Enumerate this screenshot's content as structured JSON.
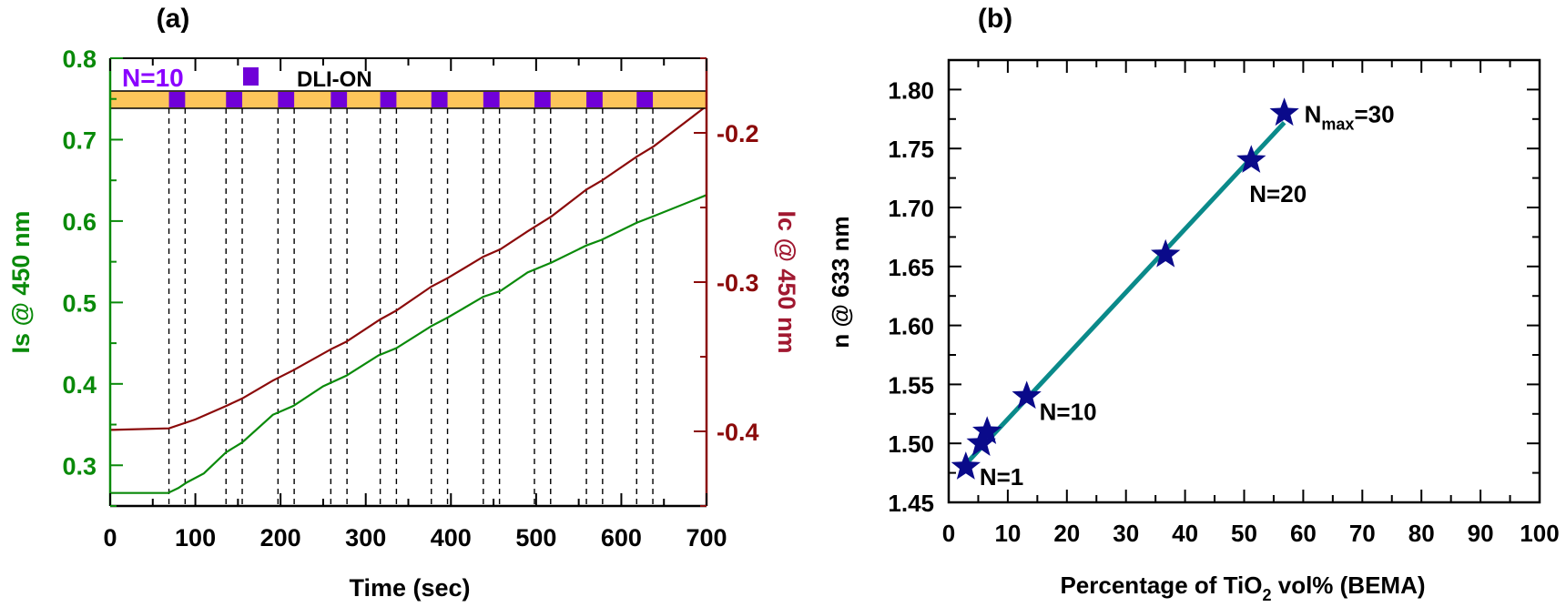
{
  "chart_data": [
    {
      "type": "line",
      "panel_label": "(a)",
      "xlabel": "Time (sec)",
      "ylabel_left": "Is @ 450 nm",
      "ylabel_right": "Ic @ 450 nm",
      "xlim": [
        0,
        700
      ],
      "ylim_left": [
        0.25,
        0.8
      ],
      "ylim_right": [
        -0.45,
        -0.15
      ],
      "x_ticks": [
        0,
        100,
        200,
        300,
        400,
        500,
        600,
        700
      ],
      "x_tick_labels": [
        "0",
        "100",
        "200",
        "300",
        "400",
        "500",
        "600",
        "700"
      ],
      "y_left_ticks": [
        0.3,
        0.4,
        0.5,
        0.6,
        0.7,
        0.8
      ],
      "y_left_tick_labels": [
        "0.3",
        "0.4",
        "0.5",
        "0.6",
        "0.7",
        "0.8"
      ],
      "y_right_ticks": [
        -0.4,
        -0.3,
        -0.2
      ],
      "y_right_tick_labels": [
        "-0.4",
        "-0.3",
        "-0.2"
      ],
      "legend": {
        "cycle_label": "N=10",
        "pulse_label": "DLI-ON",
        "placement": "top-left"
      },
      "dli_pulses": {
        "starts": [
          69,
          136,
          197,
          259,
          317,
          377,
          438,
          498,
          559,
          618
        ],
        "duration": 19
      },
      "series": [
        {
          "name": "Is @ 450 nm",
          "axis": "left",
          "color": "#0a8a0a",
          "points": [
            [
              0,
              0.266
            ],
            [
              68,
              0.266
            ],
            [
              80,
              0.272
            ],
            [
              90,
              0.279
            ],
            [
              110,
              0.29
            ],
            [
              136,
              0.316
            ],
            [
              155,
              0.328
            ],
            [
              191,
              0.362
            ],
            [
              215,
              0.373
            ],
            [
              250,
              0.397
            ],
            [
              277,
              0.41
            ],
            [
              315,
              0.435
            ],
            [
              336,
              0.444
            ],
            [
              377,
              0.471
            ],
            [
              397,
              0.482
            ],
            [
              438,
              0.507
            ],
            [
              458,
              0.514
            ],
            [
              490,
              0.537
            ],
            [
              518,
              0.549
            ],
            [
              559,
              0.57
            ],
            [
              577,
              0.577
            ],
            [
              618,
              0.598
            ],
            [
              638,
              0.606
            ],
            [
              700,
              0.632
            ]
          ]
        },
        {
          "name": "Ic @ 450 nm",
          "axis": "right",
          "color": "#8b0a0a",
          "points": [
            [
              0,
              -0.399
            ],
            [
              69,
              -0.398
            ],
            [
              100,
              -0.392
            ],
            [
              136,
              -0.383
            ],
            [
              155,
              -0.378
            ],
            [
              191,
              -0.366
            ],
            [
              215,
              -0.359
            ],
            [
              259,
              -0.345
            ],
            [
              277,
              -0.34
            ],
            [
              317,
              -0.325
            ],
            [
              336,
              -0.319
            ],
            [
              377,
              -0.303
            ],
            [
              397,
              -0.297
            ],
            [
              438,
              -0.283
            ],
            [
              458,
              -0.278
            ],
            [
              490,
              -0.266
            ],
            [
              518,
              -0.256
            ],
            [
              559,
              -0.238
            ],
            [
              577,
              -0.232
            ],
            [
              618,
              -0.216
            ],
            [
              638,
              -0.209
            ],
            [
              700,
              -0.182
            ]
          ]
        }
      ],
      "colors": {
        "left_axis": "#0a8a0a",
        "right_axis": "#8b0a0a",
        "right_label": "#a01830",
        "pulse": "#7000d8",
        "bar": "#fcc55a",
        "cycle_label": "#8a00ff"
      }
    },
    {
      "type": "scatter",
      "panel_label": "(b)",
      "xlabel_main": "Percentage of TiO",
      "xlabel_sub": "2",
      "xlabel_rest": " vol% (BEMA)",
      "ylabel": "n @ 633 nm",
      "xlim": [
        0,
        100
      ],
      "ylim": [
        1.45,
        1.825
      ],
      "x_ticks": [
        0,
        10,
        20,
        30,
        40,
        50,
        60,
        70,
        80,
        90,
        100
      ],
      "x_tick_labels": [
        "0",
        "10",
        "20",
        "30",
        "40",
        "50",
        "60",
        "70",
        "80",
        "90",
        "100"
      ],
      "y_ticks": [
        1.45,
        1.5,
        1.55,
        1.6,
        1.65,
        1.7,
        1.75,
        1.8
      ],
      "y_tick_labels": [
        "1.45",
        "1.50",
        "1.55",
        "1.60",
        "1.65",
        "1.70",
        "1.75",
        "1.80"
      ],
      "points": [
        {
          "x": 2.9,
          "y": 1.48,
          "label": "N=1"
        },
        {
          "x": 5.5,
          "y": 1.5,
          "label": ""
        },
        {
          "x": 6.5,
          "y": 1.51,
          "label": ""
        },
        {
          "x": 13.2,
          "y": 1.54,
          "label": "N=10"
        },
        {
          "x": 36.7,
          "y": 1.66,
          "label": ""
        },
        {
          "x": 51.2,
          "y": 1.74,
          "label": "N=20"
        },
        {
          "x": 56.8,
          "y": 1.78,
          "label": "N",
          "label_sub": "max",
          "label_rest": "=30"
        }
      ],
      "fit_line": {
        "from": [
          3,
          1.483
        ],
        "to": [
          56.8,
          1.772
        ]
      },
      "colors": {
        "marker": "#0a0a8a",
        "fit": "#0a8a8a"
      }
    }
  ]
}
